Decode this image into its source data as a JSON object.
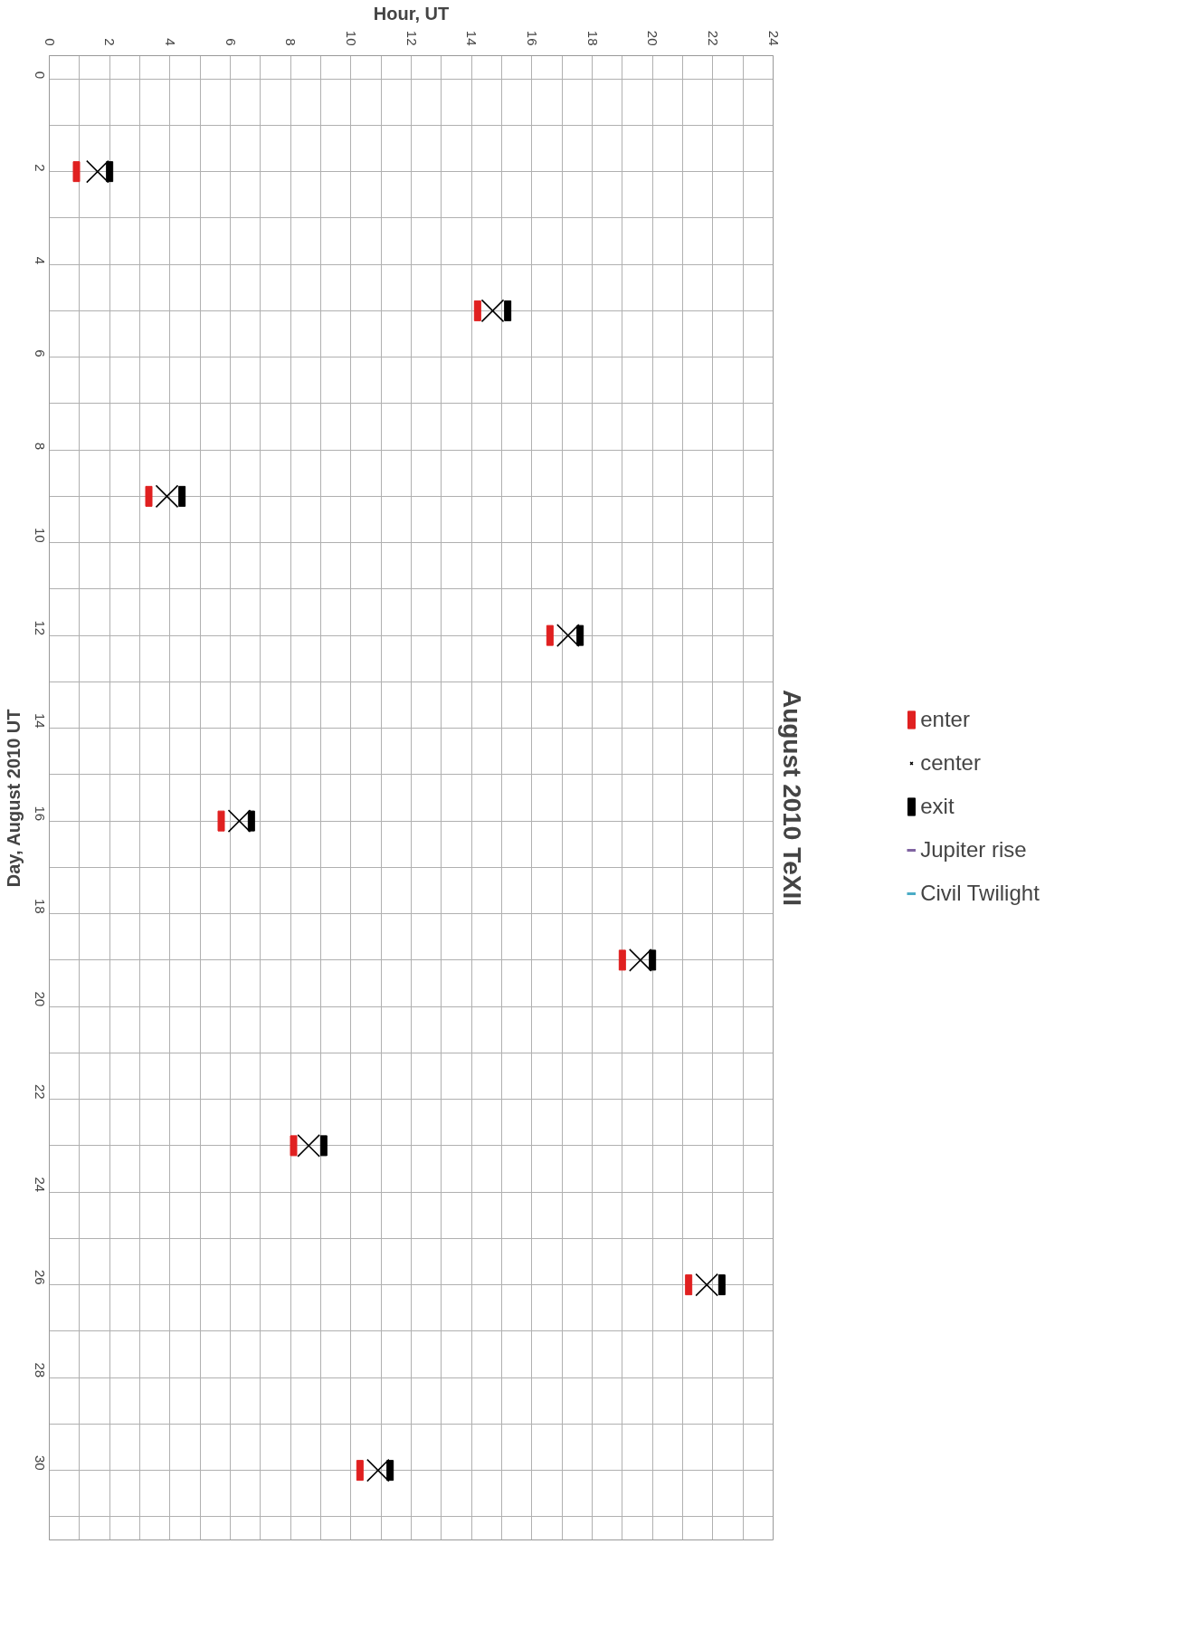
{
  "chart_data": {
    "type": "scatter",
    "title": "August 2010 TeXII",
    "xlabel": "Hour, UT",
    "ylabel": "Day, August 2010 UT",
    "series": [
      {
        "name": "enter",
        "color": "#e02020",
        "marker": "square",
        "x": [
          0.9,
          14.2,
          3.3,
          16.6,
          5.7,
          19.0,
          8.1,
          21.2,
          10.3
        ],
        "values": [
          2,
          5,
          9,
          12,
          16,
          19,
          23,
          26,
          30
        ]
      },
      {
        "name": "center",
        "color": "#000000",
        "marker": "cross",
        "x": [
          1.6,
          14.7,
          3.9,
          17.2,
          6.3,
          19.6,
          8.6,
          21.8,
          10.9
        ],
        "values": [
          2,
          5,
          9,
          12,
          16,
          19,
          23,
          26,
          30
        ]
      },
      {
        "name": "exit",
        "color": "#000000",
        "marker": "square",
        "x": [
          2.0,
          15.2,
          4.4,
          17.6,
          6.7,
          20.0,
          9.1,
          22.3,
          11.3
        ],
        "values": [
          2,
          5,
          9,
          12,
          16,
          19,
          23,
          26,
          30
        ]
      },
      {
        "name": "Jupiter rise",
        "color": "#8064a2",
        "type": "line",
        "x": [
          null
        ],
        "values": [
          null
        ]
      },
      {
        "name": "Civil Twilight",
        "color": "#4bacc6",
        "type": "line",
        "x": [
          null
        ],
        "values": [
          null
        ]
      }
    ],
    "xlim": [
      0,
      24
    ],
    "xticks": [
      0,
      {
        "value": 1,
        "label": null
      },
      2,
      {
        "value": 3,
        "label": null
      },
      4,
      {
        "value": 5,
        "label": null
      },
      6,
      {
        "value": 7,
        "label": null
      },
      8,
      {
        "value": 9,
        "label": null
      },
      10,
      {
        "value": 11,
        "label": null
      },
      12,
      {
        "value": 13,
        "label": null
      },
      14,
      {
        "value": 15,
        "label": null
      },
      16,
      {
        "value": 17,
        "label": null
      },
      18,
      {
        "value": 19,
        "label": null
      },
      20,
      {
        "value": 21,
        "label": null
      },
      22,
      {
        "value": 23,
        "label": null
      },
      24
    ],
    "ylim": [
      31.5,
      -0.5
    ],
    "yticks": [
      0,
      {
        "value": 1,
        "label": null
      },
      2,
      {
        "value": 3,
        "label": null
      },
      4,
      {
        "value": 5,
        "label": null
      },
      6,
      {
        "value": 7,
        "label": null
      },
      8,
      {
        "value": 9,
        "label": null
      },
      10,
      {
        "value": 11,
        "label": null
      },
      12,
      {
        "value": 13,
        "label": null
      },
      14,
      {
        "value": 15,
        "label": null
      },
      16,
      {
        "value": 17,
        "label": null
      },
      18,
      {
        "value": 19,
        "label": null
      },
      20,
      {
        "value": 21,
        "label": null
      },
      22,
      {
        "value": 23,
        "label": null
      },
      24,
      {
        "value": 25,
        "label": null
      },
      26,
      {
        "value": 27,
        "label": null
      },
      28,
      {
        "value": 29,
        "label": null
      },
      30,
      {
        "value": 31,
        "label": null
      }
    ],
    "grid": true,
    "legend": "right"
  }
}
